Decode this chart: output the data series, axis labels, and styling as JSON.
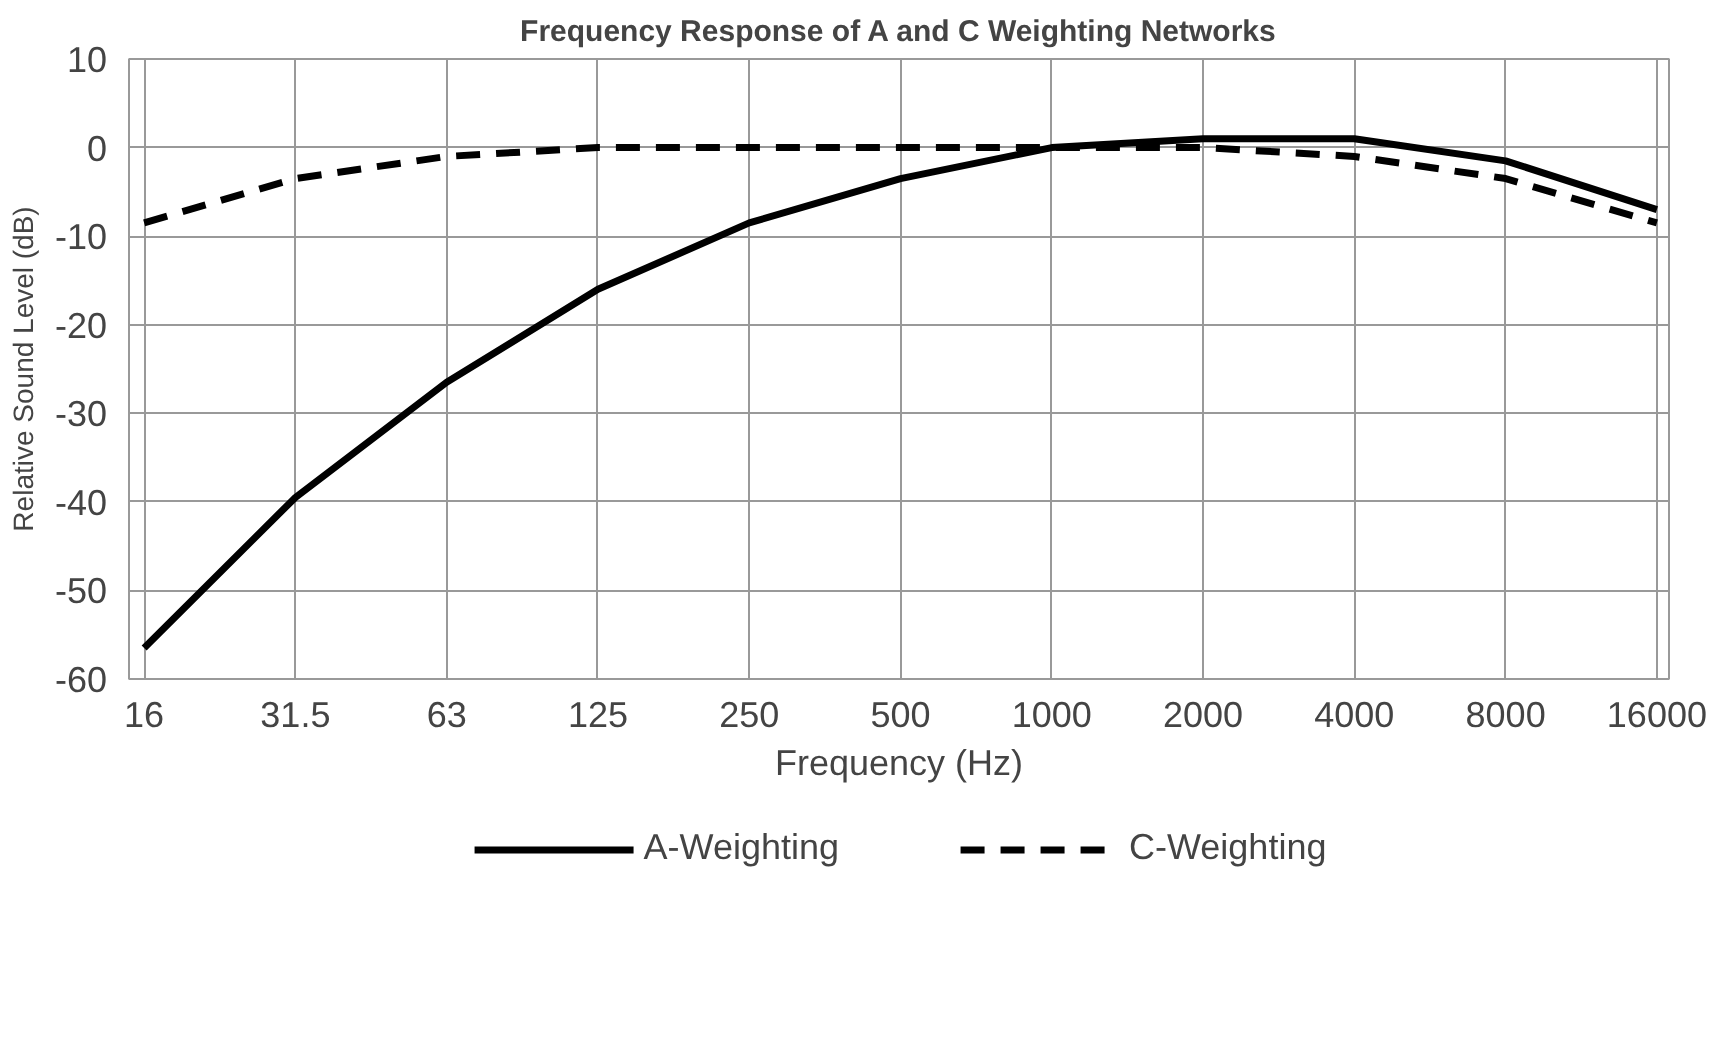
{
  "chart_data": {
    "type": "line",
    "title": "Frequency Response of A and C Weighting Networks",
    "xlabel": "Frequency (Hz)",
    "ylabel": "Relative Sound Level (dB)",
    "categories": [
      "16",
      "31.5",
      "63",
      "125",
      "250",
      "500",
      "1000",
      "2000",
      "4000",
      "8000",
      "16000"
    ],
    "ylim": [
      -60,
      10
    ],
    "yticks": [
      -60,
      -50,
      -40,
      -30,
      -20,
      -10,
      0,
      10
    ],
    "grid": true,
    "legend": "bottom",
    "marker": "none",
    "series": [
      {
        "name": "A-Weighting",
        "color": "#000000",
        "line_style": "solid",
        "values": [
          -56.5,
          -39.5,
          -26.5,
          -16,
          -8.5,
          -3.5,
          0,
          1,
          1,
          -1.5,
          -7
        ]
      },
      {
        "name": "C-Weighting",
        "color": "#000000",
        "line_style": "dashed",
        "values": [
          -8.5,
          -3.5,
          -1,
          0,
          0,
          0,
          0,
          0,
          -1,
          -3.5,
          -8.5
        ]
      }
    ]
  }
}
